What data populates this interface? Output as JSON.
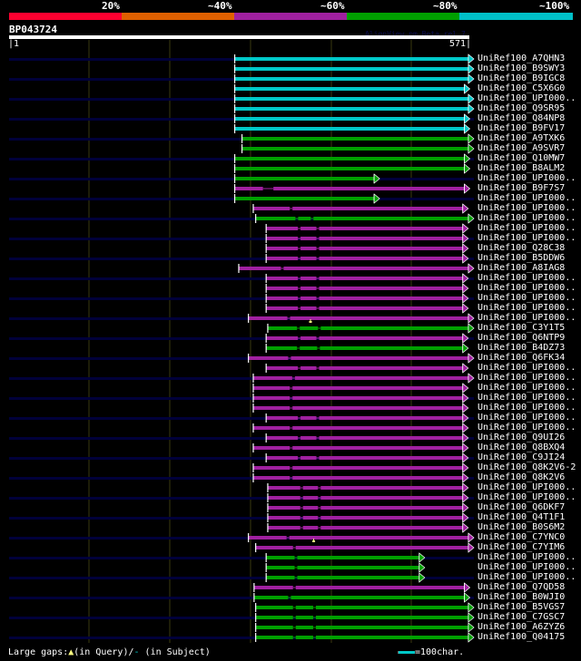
{
  "header": {
    "percent_labels": [
      "20%",
      "~40%",
      "~60%",
      "~80%",
      "~100%"
    ],
    "scale_colors": [
      "#ff0030",
      "#e06000",
      "#a020a0",
      "#00a000",
      "#00c0c8"
    ],
    "query_name": "BP043724",
    "watermark": "AlignView.pm Beta rel.7",
    "query_start": "|1",
    "query_end": "571|",
    "query_length": 571
  },
  "colors": {
    "cyan": "#00c8c8",
    "green": "#00a000",
    "magenta": "#a020a0",
    "row_bg": "#00003a",
    "grid": "#3a3a10",
    "marker": "#ffff80"
  },
  "rows": [
    {
      "label": "UniRef100_A7QHN3",
      "c": "cyan",
      "s": 281,
      "e": 571,
      "g": []
    },
    {
      "label": "UniRef100_B9SWY3",
      "c": "cyan",
      "s": 281,
      "e": 571,
      "g": []
    },
    {
      "label": "UniRef100_B9IGC8",
      "c": "cyan",
      "s": 281,
      "e": 571,
      "g": []
    },
    {
      "label": "UniRef100_C5X6G0",
      "c": "cyan",
      "s": 281,
      "e": 566,
      "g": []
    },
    {
      "label": "UniRef100_UPI000..",
      "c": "cyan",
      "s": 281,
      "e": 571,
      "g": []
    },
    {
      "label": "UniRef100_Q9SR95",
      "c": "cyan",
      "s": 281,
      "e": 571,
      "g": []
    },
    {
      "label": "UniRef100_Q84NP8",
      "c": "cyan",
      "s": 281,
      "e": 566,
      "g": []
    },
    {
      "label": "UniRef100_B9FV17",
      "c": "cyan",
      "s": 281,
      "e": 566,
      "g": []
    },
    {
      "label": "UniRef100_A9TXK6",
      "c": "green",
      "s": 290,
      "e": 571,
      "g": []
    },
    {
      "label": "UniRef100_A9SVR7",
      "c": "green",
      "s": 290,
      "e": 571,
      "g": []
    },
    {
      "label": "UniRef100_Q10MW7",
      "c": "green",
      "s": 281,
      "e": 566,
      "g": []
    },
    {
      "label": "UniRef100_B8ALM2",
      "c": "green",
      "s": 281,
      "e": 566,
      "g": []
    },
    {
      "label": "UniRef100_UPI000..",
      "c": "green",
      "s": 281,
      "e": 454,
      "g": []
    },
    {
      "label": "UniRef100_B9F7S7",
      "c": "magenta",
      "s": 281,
      "e": 566,
      "g": [
        [
          316,
          329
        ]
      ]
    },
    {
      "label": "UniRef100_UPI000..",
      "c": "green",
      "s": 281,
      "e": 454,
      "g": []
    },
    {
      "label": "UniRef100_UPI000..",
      "c": "magenta",
      "s": 304,
      "e": 564,
      "g": [
        351
      ]
    },
    {
      "label": "UniRef100_UPI000..",
      "c": "green",
      "s": 307,
      "e": 571,
      "g": [
        358,
        377
      ]
    },
    {
      "label": "UniRef100_UPI000..",
      "c": "magenta",
      "s": 320,
      "e": 564,
      "g": [
        361,
        384
      ]
    },
    {
      "label": "UniRef100_UPI000..",
      "c": "magenta",
      "s": 320,
      "e": 564,
      "g": [
        361,
        384
      ]
    },
    {
      "label": "UniRef100_Q28C38",
      "c": "magenta",
      "s": 320,
      "e": 564,
      "g": [
        361,
        384
      ]
    },
    {
      "label": "UniRef100_B5DDW6",
      "c": "magenta",
      "s": 320,
      "e": 564,
      "g": [
        361,
        384
      ]
    },
    {
      "label": "UniRef100_A8IAG8",
      "c": "magenta",
      "s": 286,
      "e": 571,
      "g": [
        340
      ]
    },
    {
      "label": "UniRef100_UPI000..",
      "c": "magenta",
      "s": 320,
      "e": 564,
      "g": [
        361,
        384
      ]
    },
    {
      "label": "UniRef100_UPI000..",
      "c": "magenta",
      "s": 320,
      "e": 564,
      "g": [
        361,
        384
      ]
    },
    {
      "label": "UniRef100_UPI000..",
      "c": "magenta",
      "s": 320,
      "e": 564,
      "g": [
        361,
        384
      ]
    },
    {
      "label": "UniRef100_UPI000..",
      "c": "magenta",
      "s": 320,
      "e": 564,
      "g": [
        361,
        384
      ]
    },
    {
      "label": "UniRef100_UPI000..",
      "c": "magenta",
      "s": 298,
      "e": 571,
      "g": [
        348
      ],
      "m": 375
    },
    {
      "label": "UniRef100_C3Y1T5",
      "c": "green",
      "s": 322,
      "e": 571,
      "g": [
        360,
        386
      ]
    },
    {
      "label": "UniRef100_Q6NTP9",
      "c": "magenta",
      "s": 320,
      "e": 564,
      "g": [
        361,
        384
      ]
    },
    {
      "label": "UniRef100_B4DZ73",
      "c": "green",
      "s": 320,
      "e": 564,
      "g": [
        360,
        385
      ]
    },
    {
      "label": "UniRef100_Q6FK34",
      "c": "magenta",
      "s": 298,
      "e": 571,
      "g": [
        349
      ]
    },
    {
      "label": "UniRef100_UPI000..",
      "c": "magenta",
      "s": 320,
      "e": 564,
      "g": [
        361,
        384
      ]
    },
    {
      "label": "UniRef100_UPI000..",
      "c": "magenta",
      "s": 304,
      "e": 571,
      "g": [
        354
      ]
    },
    {
      "label": "UniRef100_UPI000..",
      "c": "magenta",
      "s": 304,
      "e": 564,
      "g": [
        351
      ]
    },
    {
      "label": "UniRef100_UPI000..",
      "c": "magenta",
      "s": 304,
      "e": 564,
      "g": [
        351
      ]
    },
    {
      "label": "UniRef100_UPI000..",
      "c": "magenta",
      "s": 304,
      "e": 564,
      "g": [
        351
      ]
    },
    {
      "label": "UniRef100_UPI000..",
      "c": "magenta",
      "s": 320,
      "e": 564,
      "g": [
        361,
        384
      ]
    },
    {
      "label": "UniRef100_UPI000..",
      "c": "magenta",
      "s": 304,
      "e": 564,
      "g": [
        351
      ]
    },
    {
      "label": "UniRef100_Q9UI26",
      "c": "magenta",
      "s": 320,
      "e": 564,
      "g": [
        361,
        384
      ]
    },
    {
      "label": "UniRef100_Q8BXQ4",
      "c": "magenta",
      "s": 304,
      "e": 564,
      "g": [
        351
      ]
    },
    {
      "label": "UniRef100_C9JI24",
      "c": "magenta",
      "s": 320,
      "e": 564,
      "g": [
        361,
        384
      ]
    },
    {
      "label": "UniRef100_Q8K2V6-2",
      "c": "magenta",
      "s": 304,
      "e": 564,
      "g": [
        351
      ]
    },
    {
      "label": "UniRef100_Q8K2V6",
      "c": "magenta",
      "s": 304,
      "e": 564,
      "g": [
        351
      ]
    },
    {
      "label": "UniRef100_UPI000..",
      "c": "magenta",
      "s": 322,
      "e": 564,
      "g": [
        364,
        386
      ]
    },
    {
      "label": "UniRef100_UPI000..",
      "c": "magenta",
      "s": 322,
      "e": 564,
      "g": [
        364,
        386
      ]
    },
    {
      "label": "UniRef100_Q6DKF7",
      "c": "magenta",
      "s": 322,
      "e": 564,
      "g": [
        364,
        386
      ]
    },
    {
      "label": "UniRef100_Q4T1F1",
      "c": "magenta",
      "s": 322,
      "e": 564,
      "g": [
        364,
        386
      ]
    },
    {
      "label": "UniRef100_B0S6M2",
      "c": "magenta",
      "s": 322,
      "e": 564,
      "g": [
        364,
        386
      ]
    },
    {
      "label": "UniRef100_C7YNC0",
      "c": "magenta",
      "s": 298,
      "e": 571,
      "g": [
        347
      ],
      "m": 379
    },
    {
      "label": "UniRef100_C7YIM6",
      "c": "magenta",
      "s": 307,
      "e": 571,
      "g": [
        355
      ]
    },
    {
      "label": "UniRef100_UPI000..",
      "c": "green",
      "s": 320,
      "e": 510,
      "g": [
        357
      ]
    },
    {
      "label": "UniRef100_UPI000..",
      "c": "green",
      "s": 320,
      "e": 510,
      "g": [
        357
      ]
    },
    {
      "label": "UniRef100_UPI000..",
      "c": "green",
      "s": 320,
      "e": 510,
      "g": [
        357
      ]
    },
    {
      "label": "UniRef100_Q7QD58",
      "c": "magenta",
      "s": 305,
      "e": 566,
      "g": [
        355
      ]
    },
    {
      "label": "UniRef100_B0WJI0",
      "c": "green",
      "s": 305,
      "e": 566,
      "g": [
        349
      ]
    },
    {
      "label": "UniRef100_B5VGS7",
      "c": "green",
      "s": 307,
      "e": 571,
      "g": [
        355,
        380
      ]
    },
    {
      "label": "UniRef100_C7GSC7",
      "c": "green",
      "s": 307,
      "e": 571,
      "g": [
        355,
        380
      ]
    },
    {
      "label": "UniRef100_A6ZYZ6",
      "c": "green",
      "s": 307,
      "e": 571,
      "g": [
        355,
        380
      ]
    },
    {
      "label": "UniRef100_Q04175",
      "c": "green",
      "s": 307,
      "e": 571,
      "g": [
        355,
        380
      ]
    }
  ],
  "footer": {
    "large_gaps_label": "Large gaps:",
    "query_gap_text": "(in Query)/",
    "subject_gap_symbol": "-",
    "subject_gap_text": " (in Subject)",
    "scale_text": "=100char."
  }
}
